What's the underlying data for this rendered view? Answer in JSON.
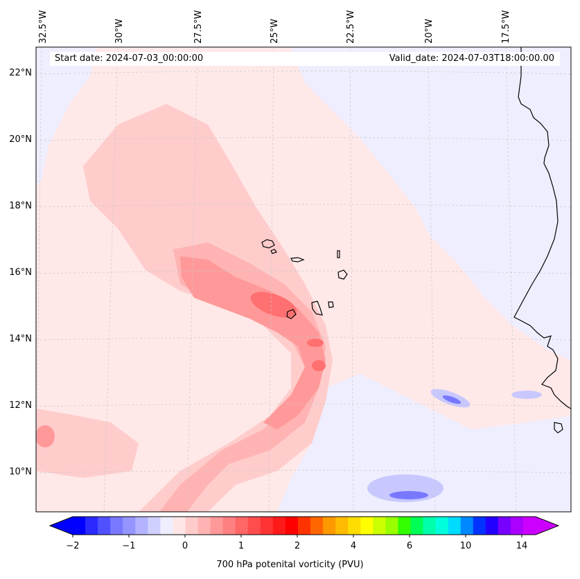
{
  "map": {
    "start_date": "Start date: 2024-07-03_00:00:00",
    "valid_date": "Valid_date: 2024-07-03T18:00:00.00",
    "lon_labels": [
      "32.5°W",
      "30°W",
      "27.5°W",
      "25°W",
      "22.5°W",
      "20°W",
      "17.5°W"
    ],
    "lat_labels": [
      "22°N",
      "20°N",
      "18°N",
      "16°N",
      "14°N",
      "12°N",
      "10°N"
    ],
    "colorbar": {
      "title": "700 hPa potenital vorticity (PVU)",
      "tick_labels": [
        "−2",
        "−1",
        "0",
        "1",
        "2",
        "4",
        "6",
        "10",
        "14"
      ],
      "colors": [
        "#0000ff",
        "#2a2aff",
        "#5050ff",
        "#7878ff",
        "#9595ff",
        "#b3b3ff",
        "#d0d0ff",
        "#eeeeff",
        "#ffe6e6",
        "#ffcccc",
        "#ffb3b3",
        "#ff9999",
        "#ff8080",
        "#ff6666",
        "#ff4d4d",
        "#ff3333",
        "#ff1a1a",
        "#ff0000",
        "#ff3300",
        "#ff6600",
        "#ff9900",
        "#ffbb00",
        "#ffdd00",
        "#ffff00",
        "#ccff00",
        "#99ff00",
        "#33ff00",
        "#00ff55",
        "#00ffaa",
        "#00ffdd",
        "#00dcff",
        "#0088ff",
        "#0033ff",
        "#2200ff",
        "#7700ff",
        "#aa00ff",
        "#cc00ff"
      ],
      "under_color": "#0000ff",
      "over_color": "#cc00ff"
    },
    "field_colors": {
      "bg": "#ffe8e8",
      "blue_light": "#eeeeff",
      "blue_mid": "#c8c8ff",
      "blue_dark": "#7878ff",
      "pink1": "#ffcccc",
      "pink2": "#ffb3b3",
      "pink3": "#ff9999",
      "pink4": "#ff7070"
    },
    "coastline_color": "#000000",
    "grid": true
  }
}
